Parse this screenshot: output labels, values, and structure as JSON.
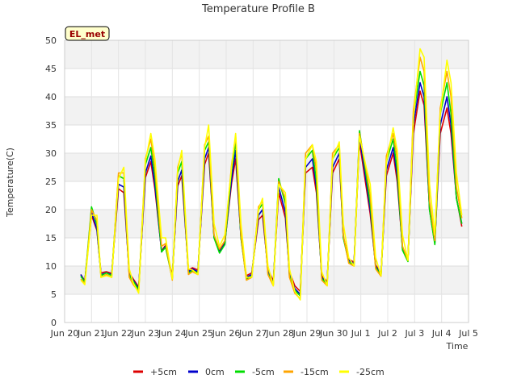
{
  "chart_data": {
    "type": "line",
    "title": "Temperature Profile B",
    "xlabel": "Time",
    "ylabel": "Temperature(C)",
    "ylim": [
      0,
      50
    ],
    "yticks": [
      0,
      5,
      10,
      15,
      20,
      25,
      30,
      35,
      40,
      45,
      50
    ],
    "xlim": [
      0,
      15
    ],
    "xtick_labels": [
      "Jun 20",
      "Jun 21",
      "Jun 22",
      "Jun 23",
      "Jun 24",
      "Jun 25",
      "Jun 26",
      "Jun 27",
      "Jun 28",
      "Jun 29",
      "Jun 30",
      "Jul 1",
      "Jul 2",
      "Jul 3",
      "Jul 4",
      "Jul 5"
    ],
    "grid": true,
    "legend_position": "bottom",
    "annotation": "EL_met",
    "x_unit": "days since Jun 20 00:00",
    "base_series": {
      "x": [
        0.6,
        0.75,
        1.0,
        1.2,
        1.35,
        1.55,
        1.75,
        2.0,
        2.2,
        2.4,
        2.55,
        2.75,
        3.0,
        3.2,
        3.35,
        3.6,
        3.75,
        4.0,
        4.2,
        4.35,
        4.6,
        4.75,
        4.95,
        5.2,
        5.35,
        5.55,
        5.75,
        5.95,
        6.2,
        6.35,
        6.55,
        6.75,
        6.95,
        7.2,
        7.35,
        7.55,
        7.75,
        7.95,
        8.2,
        8.35,
        8.55,
        8.75,
        8.95,
        9.2,
        9.35,
        9.55,
        9.75,
        9.95,
        10.2,
        10.35,
        10.55,
        10.75,
        10.95,
        11.2,
        11.35,
        11.55,
        11.75,
        11.95,
        12.2,
        12.35,
        12.55,
        12.75,
        12.95,
        13.2,
        13.35,
        13.55,
        13.75,
        13.95,
        14.2,
        14.35,
        14.55,
        14.75
      ],
      "y": [
        8.5,
        7.2,
        19.5,
        16.5,
        8.5,
        8.8,
        8.5,
        24.5,
        24.0,
        8.5,
        7.5,
        6.0,
        26.5,
        29.5,
        24.5,
        12.5,
        13.5,
        8.0,
        25.0,
        27.0,
        9.0,
        9.5,
        9.0,
        29.0,
        31.0,
        15.0,
        12.5,
        14.0,
        25.5,
        30.5,
        15.0,
        8.0,
        8.5,
        19.0,
        20.0,
        9.0,
        7.0,
        24.0,
        19.5,
        8.5,
        6.0,
        5.0,
        27.5,
        29.0,
        24.0,
        8.0,
        7.0,
        27.5,
        30.0,
        15.0,
        11.0,
        10.5,
        33.0,
        25.0,
        20.0,
        10.0,
        8.5,
        27.0,
        31.0,
        26.0,
        13.0,
        11.0,
        35.0,
        42.5,
        40.0,
        20.0,
        14.0,
        35.0,
        40.0,
        35.0,
        22.0,
        17.5
      ]
    },
    "series": [
      {
        "name": "+5cm",
        "color": "#dd0000",
        "offsets": [
          0.0,
          0.2,
          -0.5,
          -0.2,
          0.3,
          0.2,
          0.2,
          -0.8,
          -1.0,
          0.3,
          0.2,
          0.3,
          -0.8,
          -1.0,
          -0.8,
          0.2,
          0.2,
          0.3,
          -0.8,
          -1.0,
          0.3,
          0.2,
          0.3,
          -1.0,
          -1.0,
          0.2,
          0.2,
          0.2,
          -0.8,
          -1.5,
          0.2,
          0.3,
          0.3,
          -0.8,
          -1.0,
          0.5,
          0.3,
          -1.0,
          -1.0,
          0.5,
          0.5,
          0.5,
          -1.0,
          -1.5,
          -1.0,
          0.3,
          0.2,
          -1.0,
          -1.0,
          0.2,
          0.2,
          0.2,
          -1.0,
          -1.0,
          -0.8,
          0.2,
          0.2,
          -1.0,
          -1.0,
          -1.0,
          0.2,
          0.2,
          -1.5,
          -1.5,
          -1.5,
          0.2,
          0.2,
          -1.5,
          -2.0,
          -1.5,
          0.2,
          -0.5
        ]
      },
      {
        "name": "0cm",
        "color": "#0000cc",
        "offsets": [
          0.0,
          0.0,
          0.0,
          0.0,
          0.0,
          0.0,
          0.0,
          0.0,
          0.0,
          0.0,
          0.0,
          0.0,
          0.0,
          0.0,
          0.0,
          0.0,
          0.0,
          0.0,
          0.0,
          0.0,
          0.0,
          0.0,
          0.0,
          0.0,
          0.0,
          0.0,
          0.0,
          0.0,
          0.0,
          0.0,
          0.0,
          0.0,
          0.0,
          0.0,
          0.0,
          0.0,
          0.0,
          0.0,
          0.0,
          0.0,
          0.0,
          0.0,
          0.0,
          0.0,
          0.0,
          0.0,
          0.0,
          0.0,
          0.0,
          0.0,
          0.0,
          0.0,
          0.0,
          0.0,
          0.0,
          0.0,
          0.0,
          0.0,
          0.0,
          0.0,
          0.0,
          0.0,
          0.0,
          0.0,
          0.0,
          0.0,
          0.0,
          0.0,
          0.0,
          0.0,
          0.0,
          0.0
        ]
      },
      {
        "name": "-5cm",
        "color": "#00dd00",
        "offsets": [
          -0.3,
          0.0,
          1.0,
          0.8,
          -0.2,
          0.0,
          -0.2,
          1.5,
          1.5,
          -0.2,
          -0.2,
          -0.2,
          1.5,
          1.5,
          1.5,
          0.0,
          -0.2,
          -0.2,
          1.5,
          1.5,
          -0.2,
          -0.3,
          -0.2,
          1.5,
          1.0,
          0.0,
          -0.2,
          -0.2,
          1.5,
          1.5,
          0.0,
          -0.3,
          -0.3,
          1.0,
          1.0,
          -0.3,
          -0.3,
          1.5,
          1.5,
          -0.3,
          -0.3,
          -0.3,
          1.5,
          1.5,
          1.0,
          -0.2,
          -0.2,
          1.5,
          1.0,
          0.0,
          -0.3,
          -0.3,
          1.0,
          1.0,
          1.0,
          -0.2,
          -0.2,
          1.5,
          1.5,
          1.0,
          -0.2,
          -0.2,
          1.5,
          2.0,
          2.0,
          0.0,
          -0.2,
          2.0,
          2.5,
          2.0,
          0.0,
          0.0
        ]
      },
      {
        "name": "-15cm",
        "color": "#ffa500",
        "offsets": [
          -0.8,
          -0.3,
          0.5,
          1.5,
          -0.5,
          -0.3,
          -0.5,
          2.0,
          2.5,
          -0.5,
          -0.8,
          -0.5,
          2.5,
          3.0,
          3.0,
          1.0,
          0.5,
          -0.5,
          2.5,
          3.0,
          -0.5,
          -0.5,
          -0.5,
          2.5,
          2.0,
          0.5,
          0.5,
          0.5,
          2.5,
          2.5,
          0.5,
          -0.5,
          -0.5,
          1.5,
          1.5,
          -0.5,
          -0.5,
          1.0,
          2.5,
          -0.5,
          -0.8,
          -0.8,
          2.5,
          2.5,
          3.0,
          -0.5,
          -0.5,
          2.5,
          1.5,
          0.5,
          -0.5,
          -0.5,
          0.5,
          2.0,
          2.5,
          -0.5,
          -0.3,
          2.5,
          2.5,
          3.0,
          0.5,
          0.0,
          2.5,
          4.5,
          4.5,
          1.5,
          0.5,
          3.0,
          4.5,
          5.0,
          2.0,
          1.0
        ]
      },
      {
        "name": "-25cm",
        "color": "#ffff00",
        "offsets": [
          -1.0,
          -0.5,
          -0.5,
          2.5,
          -0.5,
          -0.5,
          -0.5,
          1.0,
          3.5,
          1.0,
          -0.5,
          -0.8,
          2.0,
          4.0,
          4.5,
          2.5,
          1.5,
          -0.3,
          2.0,
          3.5,
          0.5,
          -0.2,
          -0.5,
          2.0,
          4.0,
          2.5,
          1.0,
          1.5,
          2.0,
          3.0,
          2.5,
          0.0,
          -0.5,
          1.0,
          2.0,
          1.0,
          -0.5,
          0.5,
          3.5,
          1.0,
          -0.5,
          -1.0,
          1.5,
          2.5,
          4.5,
          1.0,
          -0.5,
          1.5,
          2.0,
          2.5,
          0.5,
          -0.5,
          0.0,
          2.5,
          4.5,
          1.5,
          -0.2,
          1.5,
          3.5,
          4.5,
          2.5,
          0.0,
          1.0,
          6.0,
          7.0,
          4.5,
          1.5,
          2.0,
          6.5,
          7.5,
          4.5,
          1.5
        ]
      }
    ]
  }
}
